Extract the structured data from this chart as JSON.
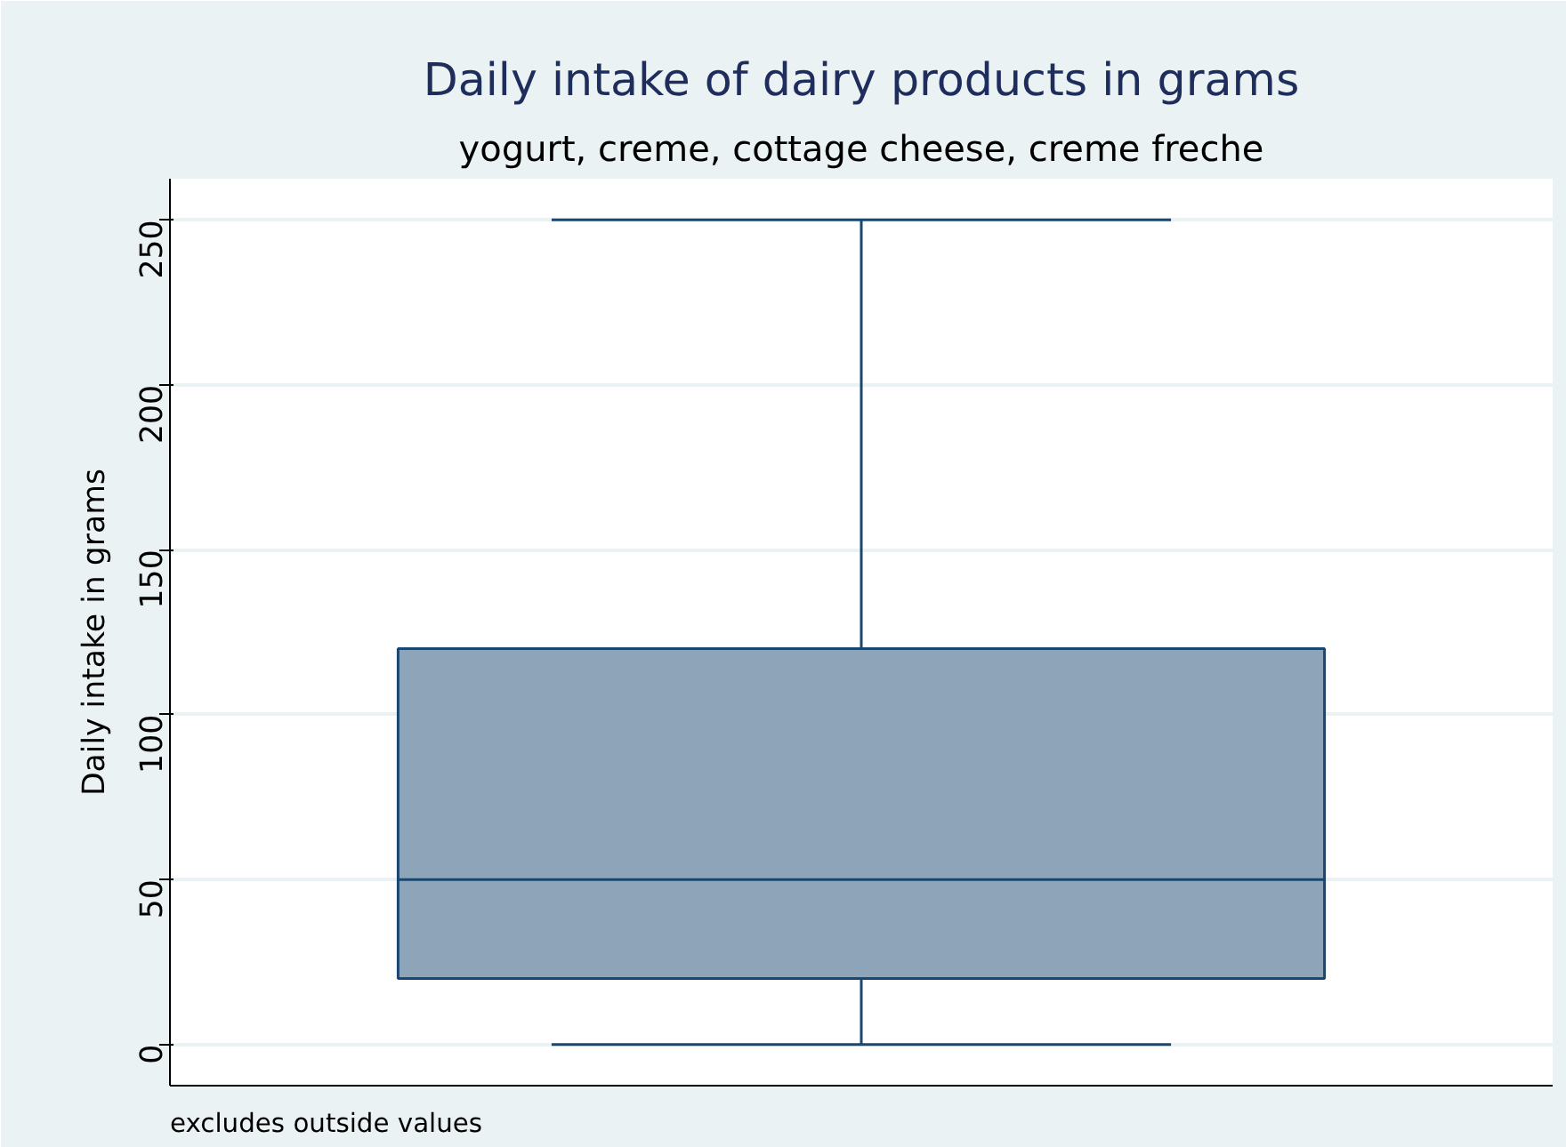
{
  "chart_data": {
    "type": "box",
    "title": "Daily intake of dairy products in grams",
    "subtitle": "yogurt, creme, cottage cheese, creme freche",
    "ylabel": "Daily intake in grams",
    "annotations": [
      "excludes outside values"
    ],
    "categories": [
      null
    ],
    "boxes": [
      {
        "low": 0,
        "q1": 20,
        "median": 50,
        "q3": 120,
        "high": 250
      }
    ],
    "color": "#8ea4b8",
    "ylim": [
      -12.5,
      262.5
    ],
    "yticks": [
      0,
      50,
      100,
      150,
      200,
      250
    ],
    "grid": "y"
  }
}
